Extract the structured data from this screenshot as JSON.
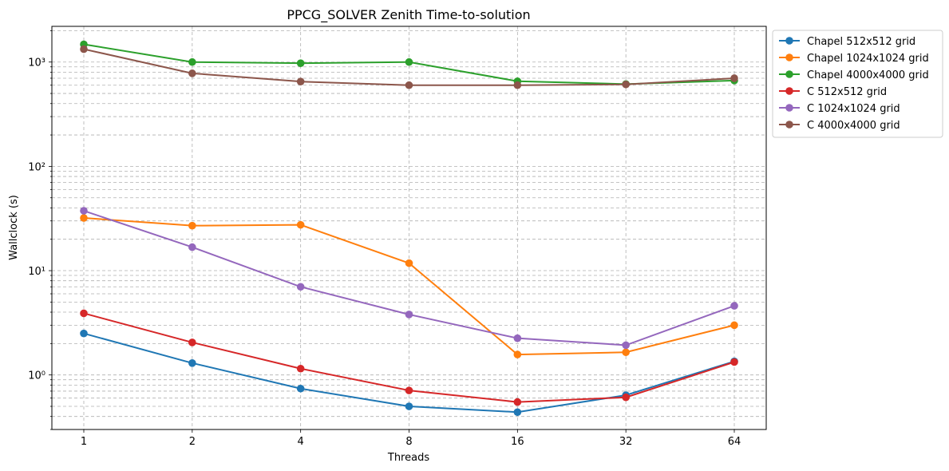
{
  "chart_data": {
    "type": "line",
    "title": "PPCG_SOLVER Zenith Time-to-solution",
    "xlabel": "Threads",
    "ylabel": "Wallclock (s)",
    "x": [
      1,
      2,
      4,
      8,
      16,
      32,
      64
    ],
    "x_tick_labels": [
      "1",
      "2",
      "4",
      "8",
      "16",
      "32",
      "64"
    ],
    "y_scale": "log",
    "ylim": [
      0.3,
      2200
    ],
    "y_tick_labels": [
      "10⁰",
      "10¹",
      "10²",
      "10³"
    ],
    "grid": true,
    "legend_position": "outside top-right",
    "series": [
      {
        "name": "Chapel 512x512 grid",
        "color": "#1f77b4",
        "values": [
          2.5,
          1.3,
          0.74,
          0.5,
          0.44,
          0.64,
          1.35
        ]
      },
      {
        "name": "Chapel 1024x1024 grid",
        "color": "#ff7f0e",
        "values": [
          32,
          27,
          27.5,
          11.8,
          1.57,
          1.65,
          3.0
        ]
      },
      {
        "name": "Chapel 4000x4000 grid",
        "color": "#2ca02c",
        "values": [
          1480,
          1000,
          975,
          1000,
          655,
          615,
          665
        ]
      },
      {
        "name": "C 512x512 grid",
        "color": "#d62728",
        "values": [
          3.9,
          2.05,
          1.15,
          0.71,
          0.55,
          0.61,
          1.33
        ]
      },
      {
        "name": "C 1024x1024 grid",
        "color": "#9467bd",
        "values": [
          37.5,
          16.8,
          7.0,
          3.8,
          2.25,
          1.93,
          4.6
        ]
      },
      {
        "name": "C 4000x4000 grid",
        "color": "#8c564b",
        "values": [
          1330,
          780,
          650,
          600,
          600,
          610,
          700
        ]
      }
    ]
  }
}
